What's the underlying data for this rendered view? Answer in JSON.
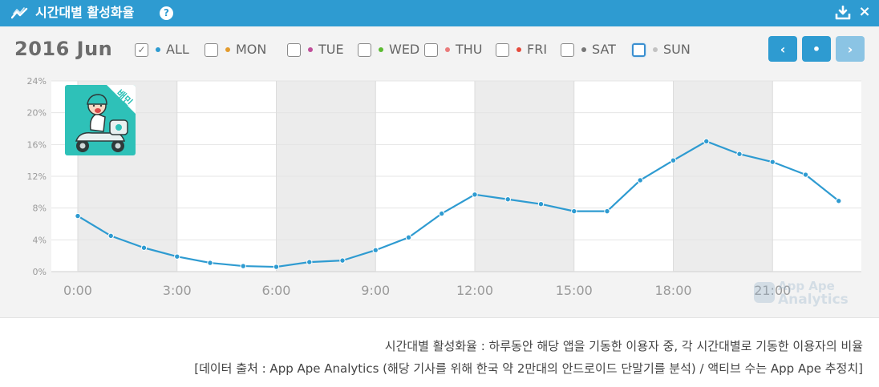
{
  "widget": {
    "title": "시간대별 활성화율",
    "help_label": "?",
    "download_icon": "download-icon",
    "close_label": "×",
    "header_color": "#2e9bd1"
  },
  "period": "2016 Jun",
  "filters": [
    {
      "key": "all",
      "label": "ALL",
      "checked": true,
      "color": "#2e9bd1",
      "check_mark": "✓"
    },
    {
      "key": "mon",
      "label": "MON",
      "checked": false,
      "color": "#e39b2d",
      "check_mark": ""
    },
    {
      "key": "tue",
      "label": "TUE",
      "checked": false,
      "color": "#c04f9a",
      "check_mark": ""
    },
    {
      "key": "wed",
      "label": "WED",
      "checked": false,
      "color": "#5cbb32",
      "check_mark": ""
    },
    {
      "key": "thu",
      "label": "THU",
      "checked": false,
      "color": "#ea7b7b",
      "check_mark": ""
    },
    {
      "key": "fri",
      "label": "FRI",
      "checked": false,
      "color": "#e54b3c",
      "check_mark": ""
    },
    {
      "key": "sat",
      "label": "SAT",
      "checked": false,
      "color": "#777777",
      "check_mark": ""
    },
    {
      "key": "sun",
      "label": "SUN",
      "checked": false,
      "color": "#c2c2c2",
      "check_mark": ""
    }
  ],
  "nav": {
    "prev_label": "‹",
    "current_label": "•",
    "next_label": "›",
    "next_enabled": false
  },
  "app_icon": {
    "name": "baemin-app-icon",
    "badge_text": "배민",
    "bg_color": "#2ec1b8"
  },
  "watermark": {
    "line1": "App Ape",
    "line2": "Analytics"
  },
  "chart_data": {
    "type": "line",
    "x_labels": [
      "0:00",
      "1:00",
      "2:00",
      "3:00",
      "4:00",
      "5:00",
      "6:00",
      "7:00",
      "8:00",
      "9:00",
      "10:00",
      "11:00",
      "12:00",
      "13:00",
      "14:00",
      "15:00",
      "16:00",
      "17:00",
      "18:00",
      "19:00",
      "20:00",
      "21:00",
      "22:00",
      "23:00"
    ],
    "x_tick_labels": [
      "0:00",
      "3:00",
      "6:00",
      "9:00",
      "12:00",
      "15:00",
      "18:00",
      "21:00"
    ],
    "y_tick_labels": [
      "0%",
      "4%",
      "8%",
      "12%",
      "16%",
      "20%",
      "24%"
    ],
    "ylim": [
      0,
      24
    ],
    "y_unit": "%",
    "series": [
      {
        "name": "ALL",
        "color": "#2e9bd1",
        "values": [
          7.0,
          4.5,
          3.0,
          1.9,
          1.1,
          0.7,
          0.6,
          1.2,
          1.4,
          2.7,
          4.3,
          7.3,
          9.7,
          9.1,
          8.5,
          7.6,
          7.6,
          11.5,
          14.0,
          16.4,
          14.8,
          13.8,
          12.2,
          8.9
        ]
      }
    ],
    "grid": true,
    "shaded_bands": true
  },
  "footer": {
    "line1": "시간대별 활성화율 : 하루동안 해당 앱을 기동한 이용자 중, 각 시간대별로 기동한 이용자의 비율",
    "line2": "[데이터 출처 : App Ape Analytics (해당 기사를 위해 한국 약 2만대의 안드로이드 단말기를 분석) / 액티브 수는 App Ape 추정치]"
  }
}
